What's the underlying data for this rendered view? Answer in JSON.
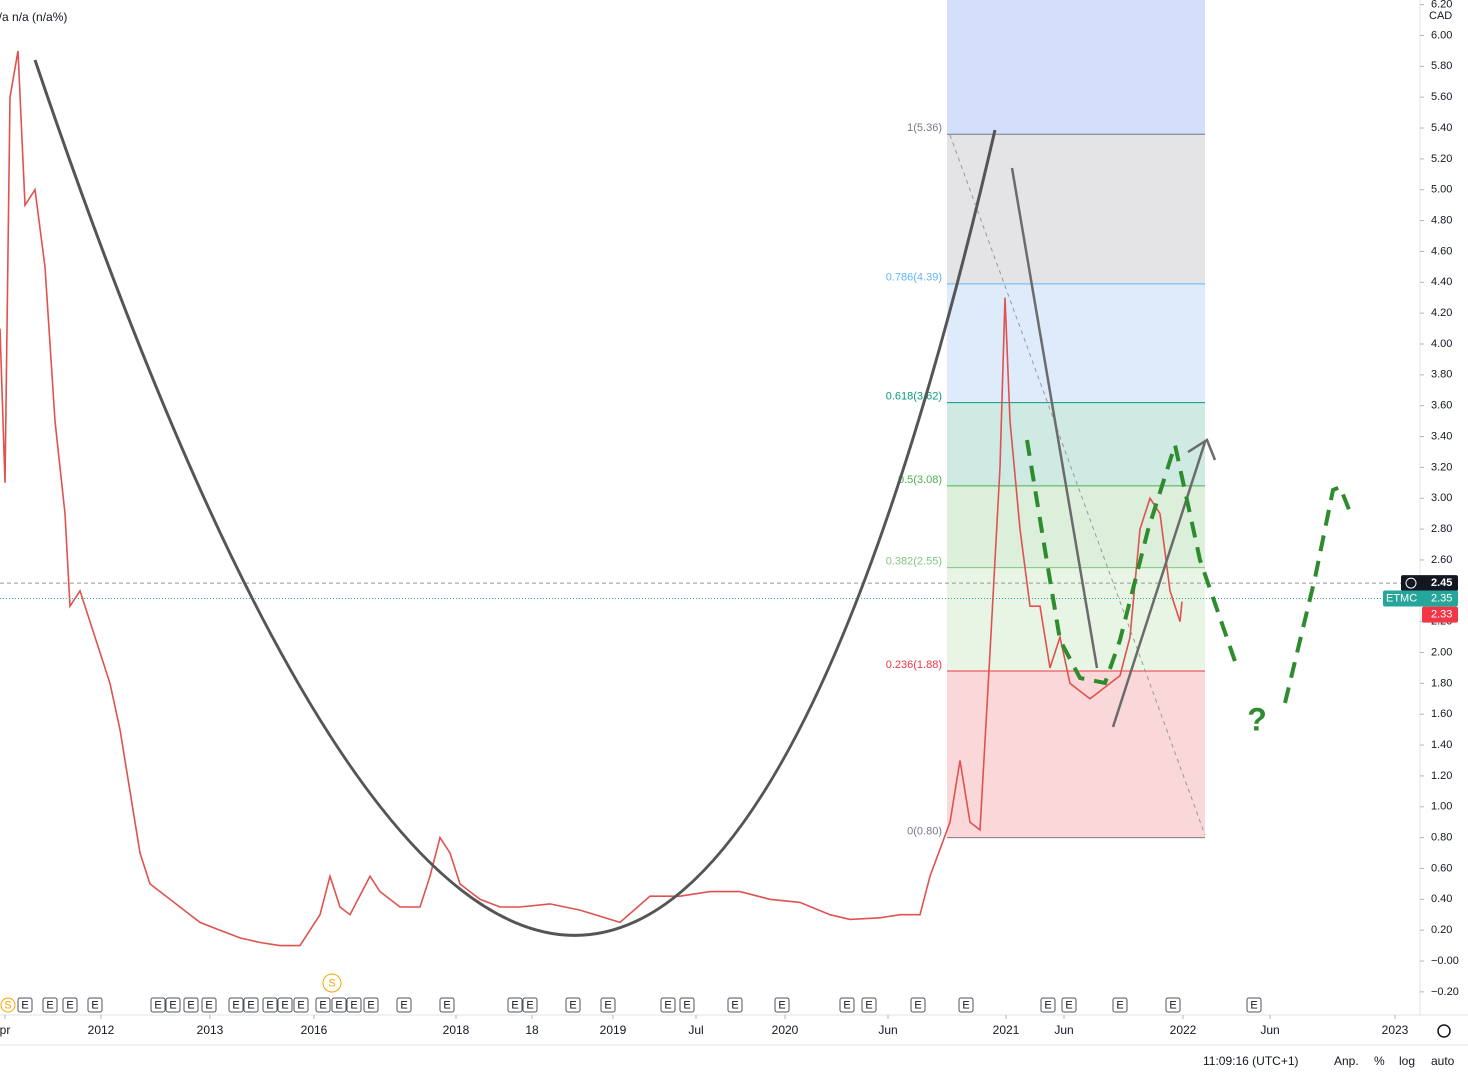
{
  "chart_data": {
    "type": "line",
    "header": "n/a n/a (n/a%)",
    "currency": "CAD",
    "symbol": "ETMC",
    "last_price": 2.45,
    "bid": 2.35,
    "close": 2.33,
    "x": [
      0,
      0.5,
      1,
      1.8,
      2.5,
      3.5,
      4.5,
      5.5,
      6.5,
      7,
      8,
      9,
      10,
      11,
      12,
      13,
      14,
      15,
      16,
      17,
      18,
      19,
      20,
      22,
      24,
      26,
      28,
      30,
      32,
      33,
      34,
      35,
      37,
      38,
      40,
      42,
      43,
      44,
      45,
      46,
      48,
      50,
      52,
      55,
      58,
      62,
      65,
      68,
      71,
      74,
      77,
      80,
      83,
      85,
      88,
      90,
      92,
      93,
      95,
      96,
      97,
      98,
      99,
      100,
      100.5,
      101,
      102,
      103,
      104,
      105,
      106,
      107,
      108,
      109,
      110,
      111,
      112,
      113,
      114,
      115,
      116,
      117,
      118,
      118.2
    ],
    "series": [
      {
        "name": "ETMC",
        "color": "#e0524f",
        "values": [
          4.1,
          3.1,
          5.6,
          5.9,
          4.9,
          5.0,
          4.5,
          3.5,
          2.9,
          2.3,
          2.4,
          2.2,
          2.0,
          1.8,
          1.5,
          1.1,
          0.7,
          0.5,
          0.45,
          0.4,
          0.35,
          0.3,
          0.25,
          0.2,
          0.15,
          0.12,
          0.1,
          0.1,
          0.3,
          0.55,
          0.35,
          0.3,
          0.55,
          0.45,
          0.35,
          0.35,
          0.55,
          0.8,
          0.7,
          0.5,
          0.4,
          0.35,
          0.35,
          0.37,
          0.33,
          0.25,
          0.42,
          0.42,
          0.45,
          0.45,
          0.4,
          0.38,
          0.3,
          0.27,
          0.28,
          0.3,
          0.3,
          0.55,
          0.9,
          1.3,
          0.9,
          0.85,
          2.0,
          3.2,
          4.3,
          3.5,
          2.8,
          2.3,
          2.3,
          1.9,
          2.1,
          1.8,
          1.75,
          1.7,
          1.75,
          1.8,
          1.85,
          2.1,
          2.8,
          3.0,
          2.9,
          2.4,
          2.2,
          2.33
        ]
      }
    ],
    "xlim": [
      0,
      142
    ],
    "xticks": [
      {
        "value": 0.5,
        "label": "pr"
      },
      {
        "value": 10.1,
        "label": "2012"
      },
      {
        "value": 21,
        "label": "2013"
      },
      {
        "value": 31.4,
        "label": "2016"
      },
      {
        "value": 45.6,
        "label": "2018"
      },
      {
        "value": 53.2,
        "label": "18"
      },
      {
        "value": 61.3,
        "label": "2019"
      },
      {
        "value": 69.6,
        "label": "Jul"
      },
      {
        "value": 78.5,
        "label": "2020"
      },
      {
        "value": 88.8,
        "label": "Jun"
      },
      {
        "value": 100.6,
        "label": "2021"
      },
      {
        "value": 106.4,
        "label": "Jun"
      },
      {
        "value": 118.3,
        "label": "2022"
      },
      {
        "value": 127,
        "label": "Jun"
      },
      {
        "value": 139.5,
        "label": "2023"
      }
    ],
    "ylim": [
      -0.35,
      6.23
    ],
    "yticks": [
      {
        "value": -0.2,
        "label": "−0.20"
      },
      {
        "value": 0,
        "label": "−0.00"
      },
      {
        "value": 0.2,
        "label": "0.20"
      },
      {
        "value": 0.4,
        "label": "0.40"
      },
      {
        "value": 0.6,
        "label": "0.60"
      },
      {
        "value": 0.8,
        "label": "0.80"
      },
      {
        "value": 1,
        "label": "1.00"
      },
      {
        "value": 1.2,
        "label": "1.20"
      },
      {
        "value": 1.4,
        "label": "1.40"
      },
      {
        "value": 1.6,
        "label": "1.60"
      },
      {
        "value": 1.8,
        "label": "1.80"
      },
      {
        "value": 2,
        "label": "2.00"
      },
      {
        "value": 2.2,
        "label": "2.20"
      },
      {
        "value": 2.4,
        "label": "2.40"
      },
      {
        "value": 2.6,
        "label": "2.60"
      },
      {
        "value": 2.8,
        "label": "2.80"
      },
      {
        "value": 3,
        "label": "3.00"
      },
      {
        "value": 3.2,
        "label": "3.20"
      },
      {
        "value": 3.4,
        "label": "3.40"
      },
      {
        "value": 3.6,
        "label": "3.60"
      },
      {
        "value": 3.8,
        "label": "3.80"
      },
      {
        "value": 4,
        "label": "4.00"
      },
      {
        "value": 4.2,
        "label": "4.20"
      },
      {
        "value": 4.4,
        "label": "4.40"
      },
      {
        "value": 4.6,
        "label": "4.60"
      },
      {
        "value": 4.8,
        "label": "4.80"
      },
      {
        "value": 5,
        "label": "5.00"
      },
      {
        "value": 5.2,
        "label": "5.20"
      },
      {
        "value": 5.4,
        "label": "5.40"
      },
      {
        "value": 5.6,
        "label": "5.60"
      },
      {
        "value": 5.8,
        "label": "5.80"
      },
      {
        "value": 6,
        "label": "6.00"
      },
      {
        "value": 6.2,
        "label": "6.20"
      }
    ],
    "fib_top_fill": "#d3defb",
    "fib_levels": [
      {
        "value": 5.36,
        "label": "1(5.36)",
        "color": "#787b86",
        "fill": "#e4e4e6"
      },
      {
        "value": 4.39,
        "label": "0.786(4.39)",
        "color": "#64b5f6",
        "fill": "#ddebfb"
      },
      {
        "value": 3.62,
        "label": "0.618(3.62)",
        "color": "#089981",
        "fill": "#cfe9e3"
      },
      {
        "value": 3.08,
        "label": "0.5(3.08)",
        "color": "#4caf50",
        "fill": "#dcefdb"
      },
      {
        "value": 2.55,
        "label": "0.382(2.55)",
        "color": "#81c784",
        "fill": "#e8f4e4"
      },
      {
        "value": 1.88,
        "label": "0.236(1.88)",
        "color": "#f23645",
        "fill": "#fad8d9"
      },
      {
        "value": 0.8,
        "label": "0(0.80)",
        "color": "#787b86"
      }
    ],
    "events": [
      {
        "x": 0,
        "label": "S"
      },
      {
        "x": 1.7,
        "label": "E"
      },
      {
        "x": 4.2,
        "label": "E"
      },
      {
        "x": 6.2,
        "label": "E"
      },
      {
        "x": 8.7,
        "label": "E"
      },
      {
        "x": 15,
        "label": "E"
      },
      {
        "x": 16.5,
        "label": "E"
      },
      {
        "x": 18.3,
        "label": "E"
      },
      {
        "x": 20.1,
        "label": "E"
      },
      {
        "x": 22.8,
        "label": "E"
      },
      {
        "x": 24.3,
        "label": "E"
      },
      {
        "x": 26.2,
        "label": "E"
      },
      {
        "x": 27.7,
        "label": "E"
      },
      {
        "x": 29.3,
        "label": "E"
      },
      {
        "x": 31.5,
        "label": "E"
      },
      {
        "x": 33.1,
        "label": "E"
      },
      {
        "x": 34.6,
        "label": "E"
      },
      {
        "x": 36.3,
        "label": "E"
      },
      {
        "x": 39.6,
        "label": "E"
      },
      {
        "x": 43.9,
        "label": "E"
      },
      {
        "x": 50.7,
        "label": "E"
      },
      {
        "x": 52.2,
        "label": "E"
      },
      {
        "x": 56.5,
        "label": "E"
      },
      {
        "x": 60,
        "label": "E"
      },
      {
        "x": 66,
        "label": "E"
      },
      {
        "x": 67.9,
        "label": "E"
      },
      {
        "x": 72.7,
        "label": "E"
      },
      {
        "x": 77.4,
        "label": "E"
      },
      {
        "x": 83.9,
        "label": "E"
      },
      {
        "x": 86.1,
        "label": "E"
      },
      {
        "x": 91,
        "label": "E"
      },
      {
        "x": 95.8,
        "label": "E"
      },
      {
        "x": 104,
        "label": "E"
      },
      {
        "x": 106.1,
        "label": "E"
      },
      {
        "x": 111.2,
        "label": "E"
      },
      {
        "x": 116.5,
        "label": "E"
      },
      {
        "x": 124.6,
        "label": "E"
      }
    ],
    "split_marker": {
      "x": 33.2,
      "label": "S"
    },
    "annotation": "?",
    "status": {
      "time": "11:09:16 (UTC+1)",
      "adj": "Anp.",
      "percent": "%",
      "log": "log",
      "auto": "auto"
    }
  }
}
